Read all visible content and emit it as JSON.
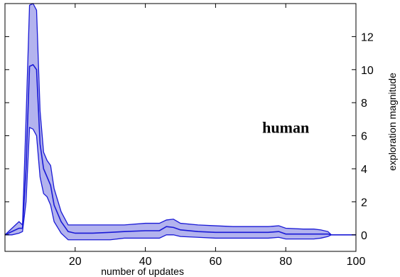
{
  "chart_data": {
    "type": "area",
    "title": "",
    "xlabel": "number of updates",
    "ylabel": "exploration magnitude",
    "xlim": [
      0,
      100
    ],
    "ylim": [
      -1,
      14
    ],
    "xticks": [
      "20",
      "40",
      "60",
      "80",
      "100"
    ],
    "yticks": [
      "0",
      "2",
      "4",
      "6",
      "8",
      "10",
      "12"
    ],
    "y_axis_side": "right",
    "grid": false,
    "annotation": "human",
    "colors": {
      "line": "#1a1ad6",
      "band": "#b3b3ee",
      "axis": "#000000"
    },
    "series": [
      {
        "x": [
          0,
          2,
          4,
          5,
          6,
          7,
          8,
          9,
          10,
          11,
          12,
          13,
          14,
          16,
          18,
          20,
          25,
          30,
          34,
          40,
          44,
          46,
          48,
          50,
          55,
          60,
          65,
          70,
          75,
          78,
          80,
          85,
          88,
          90,
          92,
          93,
          95,
          100
        ],
        "mean": [
          0,
          0.2,
          0.4,
          0.4,
          4.0,
          10.2,
          10.3,
          10.0,
          5.5,
          4.0,
          3.5,
          3.0,
          1.8,
          0.8,
          0.2,
          0.1,
          0.1,
          0.15,
          0.2,
          0.25,
          0.25,
          0.5,
          0.45,
          0.3,
          0.2,
          0.15,
          0.15,
          0.15,
          0.15,
          0.2,
          0.05,
          0.05,
          0.05,
          0.05,
          0.05,
          0,
          0,
          0
        ],
        "lower": [
          0,
          0.0,
          0.1,
          0.2,
          2.0,
          6.5,
          6.4,
          6.0,
          3.5,
          2.5,
          2.3,
          1.8,
          0.8,
          0.1,
          -0.3,
          -0.3,
          -0.3,
          -0.3,
          -0.2,
          -0.2,
          -0.2,
          0.0,
          0.0,
          -0.1,
          -0.15,
          -0.2,
          -0.2,
          -0.2,
          -0.2,
          -0.15,
          -0.25,
          -0.25,
          -0.25,
          -0.2,
          -0.1,
          0,
          0,
          0
        ],
        "upper": [
          0,
          0.4,
          0.8,
          0.6,
          7.0,
          13.9,
          14.0,
          13.6,
          7.5,
          5.0,
          4.5,
          4.2,
          2.8,
          1.4,
          0.6,
          0.6,
          0.6,
          0.6,
          0.6,
          0.7,
          0.7,
          0.9,
          0.95,
          0.7,
          0.6,
          0.55,
          0.5,
          0.5,
          0.5,
          0.55,
          0.4,
          0.35,
          0.35,
          0.3,
          0.2,
          0,
          0,
          0
        ]
      }
    ]
  }
}
